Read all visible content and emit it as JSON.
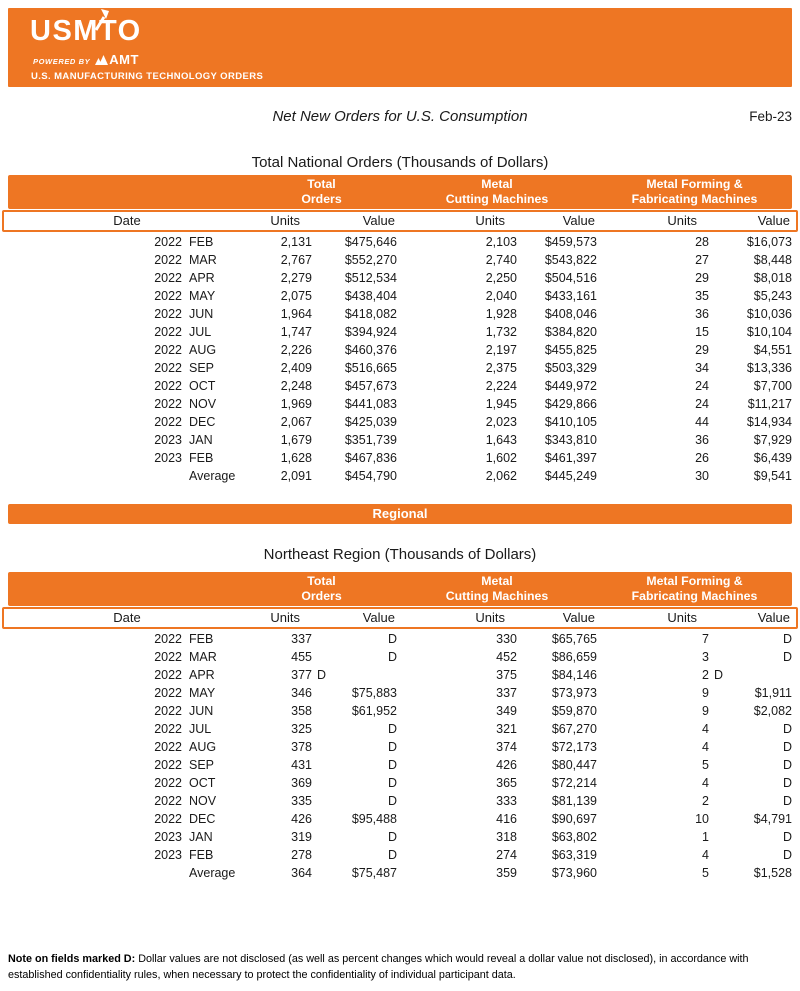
{
  "brand": {
    "logo_text": "USMTO",
    "powered_by_label": "POWERED BY",
    "amt_label": "AMT",
    "tagline": "U.S. MANUFACTURING TECHNOLOGY ORDERS",
    "orange": "#EE7623"
  },
  "title": {
    "text": "Net New Orders for U.S. Consumption",
    "period": "Feb-23"
  },
  "table_headers": {
    "date_label": "Date",
    "units_label": "Units",
    "value_label": "Value",
    "groups": [
      {
        "line1": "Total",
        "line2": "Orders"
      },
      {
        "line1": "Metal",
        "line2": "Cutting Machines"
      },
      {
        "line1": "Metal Forming &",
        "line2": "Fabricating Machines"
      }
    ]
  },
  "national": {
    "heading": "Total National Orders (Thousands of Dollars)",
    "rows": [
      [
        "2022",
        "FEB",
        "2,131",
        "$475,646",
        "2,103",
        "$459,573",
        "28",
        "$16,073"
      ],
      [
        "2022",
        "MAR",
        "2,767",
        "$552,270",
        "2,740",
        "$543,822",
        "27",
        "$8,448"
      ],
      [
        "2022",
        "APR",
        "2,279",
        "$512,534",
        "2,250",
        "$504,516",
        "29",
        "$8,018"
      ],
      [
        "2022",
        "MAY",
        "2,075",
        "$438,404",
        "2,040",
        "$433,161",
        "35",
        "$5,243"
      ],
      [
        "2022",
        "JUN",
        "1,964",
        "$418,082",
        "1,928",
        "$408,046",
        "36",
        "$10,036"
      ],
      [
        "2022",
        "JUL",
        "1,747",
        "$394,924",
        "1,732",
        "$384,820",
        "15",
        "$10,104"
      ],
      [
        "2022",
        "AUG",
        "2,226",
        "$460,376",
        "2,197",
        "$455,825",
        "29",
        "$4,551"
      ],
      [
        "2022",
        "SEP",
        "2,409",
        "$516,665",
        "2,375",
        "$503,329",
        "34",
        "$13,336"
      ],
      [
        "2022",
        "OCT",
        "2,248",
        "$457,673",
        "2,224",
        "$449,972",
        "24",
        "$7,700"
      ],
      [
        "2022",
        "NOV",
        "1,969",
        "$441,083",
        "1,945",
        "$429,866",
        "24",
        "$11,217"
      ],
      [
        "2022",
        "DEC",
        "2,067",
        "$425,039",
        "2,023",
        "$410,105",
        "44",
        "$14,934"
      ],
      [
        "2023",
        "JAN",
        "1,679",
        "$351,739",
        "1,643",
        "$343,810",
        "36",
        "$7,929"
      ],
      [
        "2023",
        "FEB",
        "1,628",
        "$467,836",
        "1,602",
        "$461,397",
        "26",
        "$6,439"
      ],
      [
        "",
        "Average",
        "2,091",
        "$454,790",
        "2,062",
        "$445,249",
        "30",
        "$9,541"
      ]
    ]
  },
  "regional": {
    "banner_label": "Regional"
  },
  "northeast": {
    "heading": "Northeast Region (Thousands of Dollars)",
    "rows": [
      [
        "2022",
        "FEB",
        "337",
        "D",
        "330",
        "$65,765",
        "7",
        "D"
      ],
      [
        "2022",
        "MAR",
        "455",
        "D",
        "452",
        "$86,659",
        "3",
        "D"
      ],
      [
        "2022",
        "APR",
        "377",
        {
          "text": "D",
          "align": "left"
        },
        "375",
        "$84,146",
        "2",
        {
          "text": "D",
          "align": "left"
        }
      ],
      [
        "2022",
        "MAY",
        "346",
        "$75,883",
        "337",
        "$73,973",
        "9",
        "$1,911"
      ],
      [
        "2022",
        "JUN",
        "358",
        "$61,952",
        "349",
        "$59,870",
        "9",
        "$2,082"
      ],
      [
        "2022",
        "JUL",
        "325",
        "D",
        "321",
        "$67,270",
        "4",
        "D"
      ],
      [
        "2022",
        "AUG",
        "378",
        "D",
        "374",
        "$72,173",
        "4",
        "D"
      ],
      [
        "2022",
        "SEP",
        "431",
        "D",
        "426",
        "$80,447",
        "5",
        "D"
      ],
      [
        "2022",
        "OCT",
        "369",
        "D",
        "365",
        "$72,214",
        "4",
        "D"
      ],
      [
        "2022",
        "NOV",
        "335",
        "D",
        "333",
        "$81,139",
        "2",
        "D"
      ],
      [
        "2022",
        "DEC",
        "426",
        "$95,488",
        "416",
        "$90,697",
        "10",
        "$4,791"
      ],
      [
        "2023",
        "JAN",
        "319",
        "D",
        "318",
        "$63,802",
        "1",
        "D"
      ],
      [
        "2023",
        "FEB",
        "278",
        "D",
        "274",
        "$63,319",
        "4",
        "D"
      ],
      [
        "",
        "Average",
        "364",
        "$75,487",
        "359",
        "$73,960",
        "5",
        "$1,528"
      ]
    ]
  },
  "note": {
    "bold": "Note on fields marked D:",
    "text": "Dollar values are not disclosed (as well as percent changes which would reveal a dollar value not disclosed), in accordance with established confidentiality rules, when necessary to protect the confidentiality of individual participant data."
  }
}
